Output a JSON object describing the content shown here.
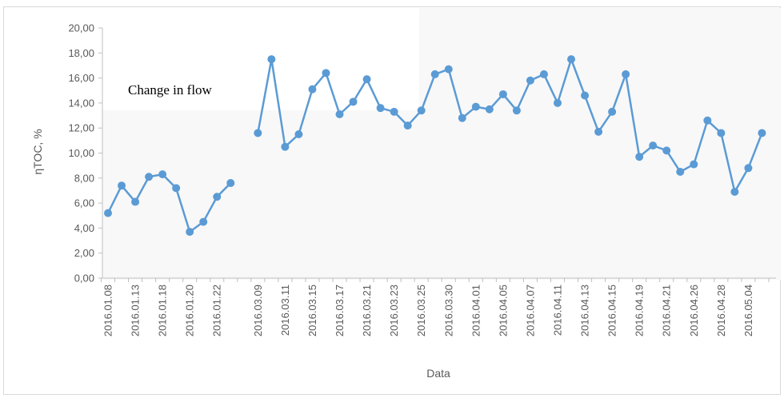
{
  "chart_data": {
    "type": "line",
    "title": "",
    "xlabel": "Data",
    "ylabel": "ηTOC, %",
    "ylim": [
      0,
      20
    ],
    "yticks": [
      "0,00",
      "2,00",
      "4,00",
      "6,00",
      "8,00",
      "10,00",
      "12,00",
      "14,00",
      "16,00",
      "18,00",
      "20,00"
    ],
    "grid": false,
    "legend": "none",
    "annotation": "Change in flow",
    "colors": {
      "series": "#5b9bd5",
      "axis": "#bfbfbf",
      "text": "#595959"
    },
    "xtick_labels": [
      "2016.01.08",
      "2016.01.13",
      "2016.01.18",
      "2016.01.20",
      "2016.01.22",
      "2016.03.09",
      "2016.03.11",
      "2016.03.15",
      "2016.03.17",
      "2016.03.21",
      "2016.03.23",
      "2016.03.25",
      "2016.03.30",
      "2016.04.01",
      "2016.04.05",
      "2016.04.07",
      "2016.04.11",
      "2016.04.13",
      "2016.04.15",
      "2016.04.19",
      "2016.04.21",
      "2016.04.26",
      "2016.04.28",
      "2016.05.04"
    ],
    "series": [
      {
        "values": [
          5.2,
          7.4,
          6.1,
          8.1,
          8.3,
          7.2,
          3.7,
          4.5,
          6.5,
          7.6,
          null,
          11.6,
          17.5,
          10.5,
          11.5,
          15.1,
          16.4,
          13.1,
          14.1,
          15.9,
          13.6,
          13.3,
          12.2,
          13.4,
          16.3,
          16.7,
          12.8,
          13.7,
          13.5,
          14.7,
          13.4,
          15.8,
          16.3,
          14.0,
          17.5,
          14.6,
          11.7,
          13.3,
          16.3,
          9.7,
          10.6,
          10.2,
          8.5,
          9.1,
          12.6,
          11.6,
          6.9,
          8.8,
          11.6
        ]
      }
    ]
  }
}
